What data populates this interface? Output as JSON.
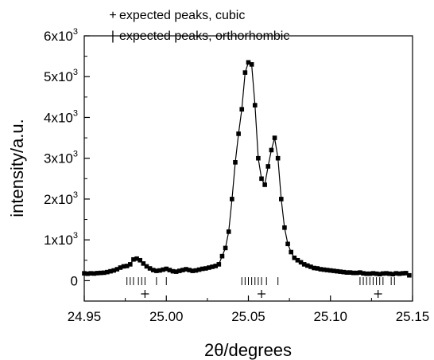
{
  "chart_data": {
    "type": "scatter",
    "xlabel": "2θ/degrees",
    "ylabel": "intensity/a.u.",
    "xlim": [
      24.95,
      25.15
    ],
    "ylim": [
      -500,
      6000
    ],
    "xticks": [
      24.95,
      25.0,
      25.05,
      25.1,
      25.15
    ],
    "xtick_labels": [
      "24.95",
      "25.00",
      "25.05",
      "25.10",
      "25.15"
    ],
    "yticks": [
      0,
      1000,
      2000,
      3000,
      4000,
      5000,
      6000
    ],
    "ytick_labels": [
      {
        "base": "0",
        "exp": ""
      },
      {
        "base": "1x10",
        "exp": "3"
      },
      {
        "base": "2x10",
        "exp": "3"
      },
      {
        "base": "3x10",
        "exp": "3"
      },
      {
        "base": "4x10",
        "exp": "3"
      },
      {
        "base": "5x10",
        "exp": "3"
      },
      {
        "base": "6x10",
        "exp": "3"
      }
    ],
    "legend": {
      "placement": "top-left",
      "entries": [
        {
          "symbol": "+",
          "label": "expected peaks, cubic"
        },
        {
          "symbol": "|",
          "label": "expected peaks, orthorhombic"
        }
      ]
    },
    "series": [
      {
        "marker": "square",
        "line": true,
        "x": [
          24.95,
          24.952,
          24.954,
          24.956,
          24.958,
          24.96,
          24.962,
          24.964,
          24.966,
          24.968,
          24.97,
          24.972,
          24.974,
          24.976,
          24.978,
          24.98,
          24.982,
          24.984,
          24.986,
          24.988,
          24.99,
          24.992,
          24.994,
          24.996,
          24.998,
          25.0,
          25.002,
          25.004,
          25.006,
          25.008,
          25.01,
          25.012,
          25.014,
          25.016,
          25.018,
          25.02,
          25.022,
          25.024,
          25.026,
          25.028,
          25.03,
          25.032,
          25.034,
          25.036,
          25.038,
          25.04,
          25.042,
          25.044,
          25.046,
          25.048,
          25.05,
          25.052,
          25.054,
          25.056,
          25.058,
          25.06,
          25.062,
          25.064,
          25.066,
          25.068,
          25.07,
          25.072,
          25.074,
          25.076,
          25.078,
          25.08,
          25.082,
          25.084,
          25.086,
          25.088,
          25.09,
          25.092,
          25.094,
          25.096,
          25.098,
          25.1,
          25.102,
          25.104,
          25.106,
          25.108,
          25.11,
          25.112,
          25.114,
          25.116,
          25.118,
          25.12,
          25.122,
          25.124,
          25.126,
          25.128,
          25.13,
          25.132,
          25.134,
          25.136,
          25.138,
          25.14,
          25.142,
          25.144,
          25.146,
          25.148
        ],
        "y": [
          180,
          170,
          180,
          175,
          185,
          190,
          195,
          210,
          230,
          250,
          280,
          320,
          350,
          360,
          400,
          520,
          540,
          500,
          420,
          350,
          300,
          260,
          240,
          250,
          270,
          290,
          260,
          230,
          220,
          240,
          260,
          280,
          260,
          240,
          250,
          270,
          290,
          300,
          320,
          340,
          360,
          400,
          600,
          800,
          1200,
          2000,
          2900,
          3600,
          4200,
          5100,
          5350,
          5300,
          4300,
          3000,
          2500,
          2350,
          2800,
          3200,
          3500,
          3000,
          2000,
          1300,
          900,
          700,
          560,
          500,
          450,
          400,
          370,
          340,
          310,
          300,
          280,
          270,
          260,
          250,
          240,
          230,
          220,
          210,
          200,
          200,
          190,
          190,
          200,
          180,
          170,
          170,
          180,
          170,
          160,
          175,
          180,
          170,
          160,
          180,
          170,
          180,
          185,
          130
        ]
      }
    ],
    "reference_ticks": {
      "orthorhombic": [
        24.976,
        24.978,
        24.98,
        24.983,
        24.985,
        24.987,
        24.994,
        25.0,
        25.046,
        25.048,
        25.05,
        25.052,
        25.054,
        25.056,
        25.058,
        25.061,
        25.068,
        25.118,
        25.12,
        25.122,
        25.124,
        25.126,
        25.128,
        25.13,
        25.132,
        25.137,
        25.139
      ],
      "cubic": [
        24.987,
        25.058,
        25.129
      ]
    }
  }
}
